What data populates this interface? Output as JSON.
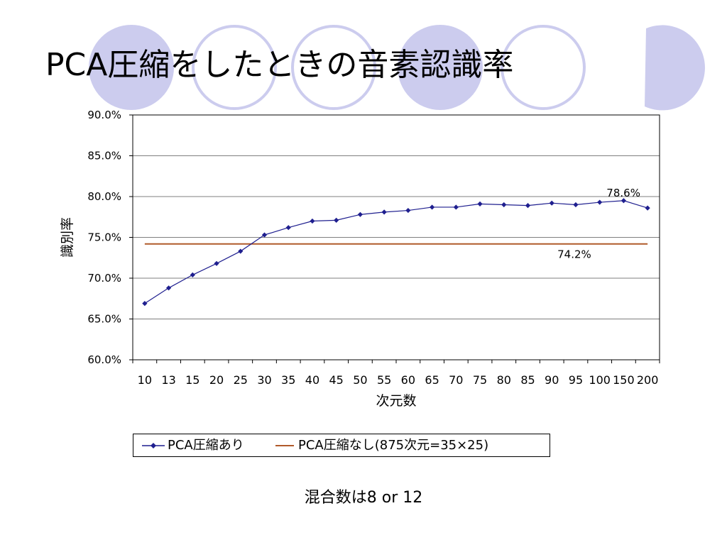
{
  "slide": {
    "title": "PCA圧縮をしたときの音素認識率",
    "note": "混合数は8 or 12"
  },
  "chart_data": {
    "type": "line",
    "title": "",
    "xlabel": "次元数",
    "ylabel": "識別率",
    "categories": [
      "10",
      "13",
      "15",
      "20",
      "25",
      "30",
      "35",
      "40",
      "45",
      "50",
      "55",
      "60",
      "65",
      "70",
      "75",
      "80",
      "85",
      "90",
      "95",
      "100",
      "150",
      "200"
    ],
    "ylim": [
      60,
      90
    ],
    "yticks": [
      "60.0%",
      "65.0%",
      "70.0%",
      "75.0%",
      "80.0%",
      "85.0%",
      "90.0%"
    ],
    "grid": true,
    "legend_position": "bottom",
    "series": [
      {
        "name": "PCA圧縮あり",
        "color": "#1F1F8F",
        "marker": "diamond",
        "values": [
          66.9,
          68.8,
          70.4,
          71.8,
          73.3,
          75.3,
          76.2,
          77.0,
          77.1,
          77.8,
          78.1,
          78.3,
          78.7,
          78.7,
          79.1,
          79.0,
          78.9,
          79.2,
          79.0,
          79.3,
          79.5,
          78.6
        ]
      },
      {
        "name": "PCA圧縮なし(875次元=35×25)",
        "color": "#B05A2A",
        "marker": "none",
        "values": [
          74.2,
          74.2,
          74.2,
          74.2,
          74.2,
          74.2,
          74.2,
          74.2,
          74.2,
          74.2,
          74.2,
          74.2,
          74.2,
          74.2,
          74.2,
          74.2,
          74.2,
          74.2,
          74.2,
          74.2,
          74.2,
          74.2
        ]
      }
    ],
    "annotations": [
      "78.6%",
      "74.2%"
    ]
  }
}
